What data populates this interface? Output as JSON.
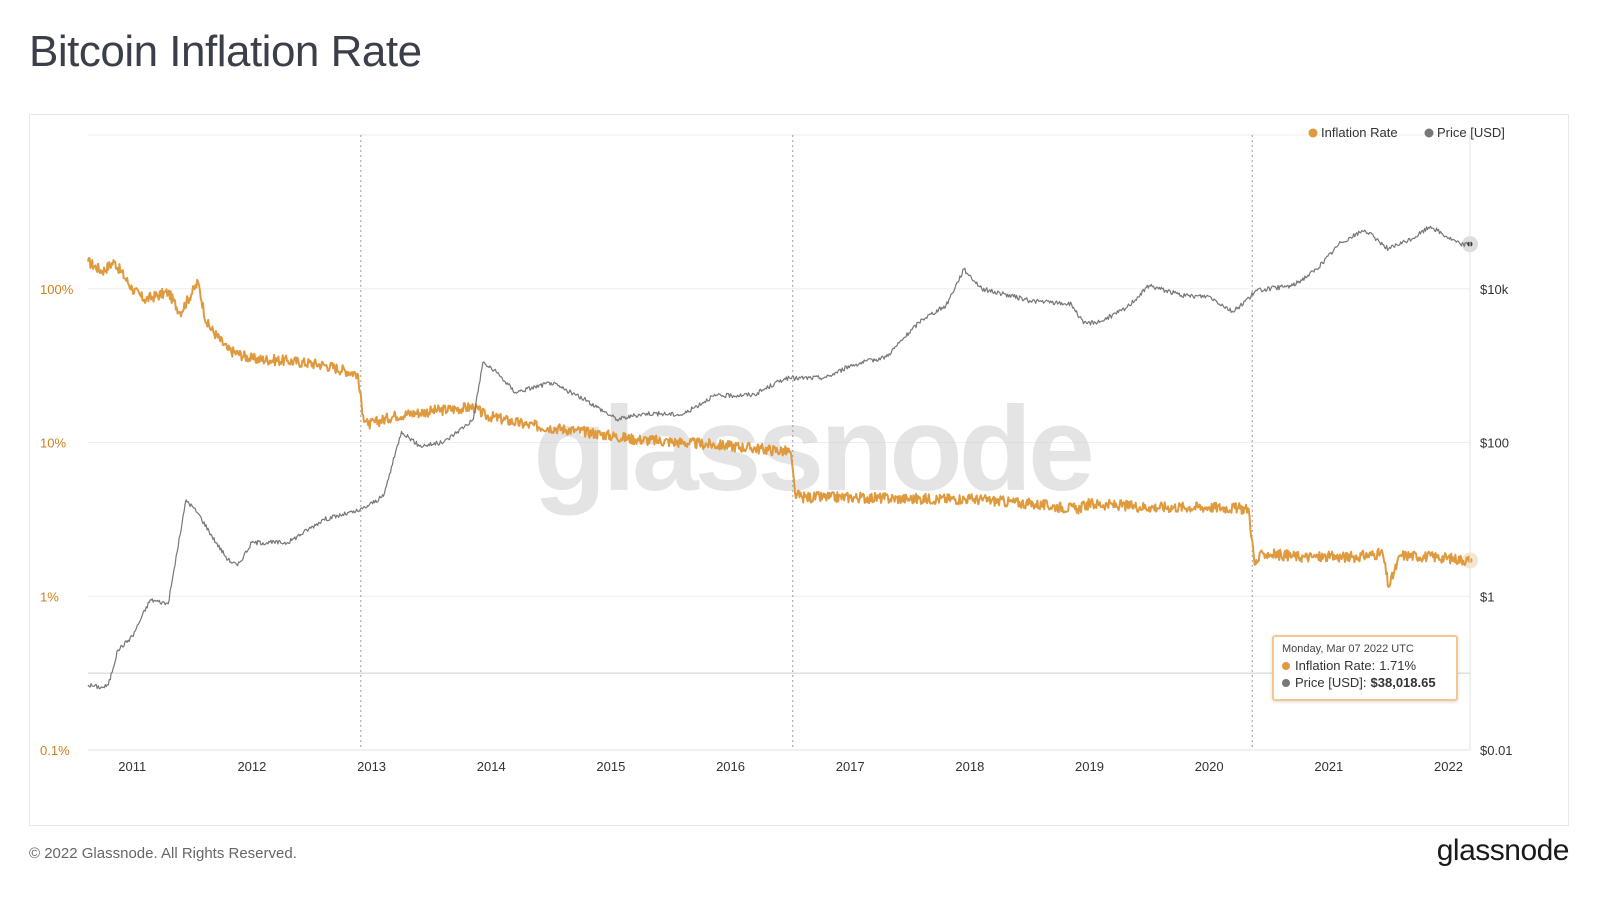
{
  "title": "Bitcoin Inflation Rate",
  "footer": {
    "copyright": "© 2022 Glassnode. All Rights Reserved.",
    "logo": "glassnode"
  },
  "watermark": "glassnode",
  "tooltip": {
    "date": "Monday, Mar 07 2022 UTC",
    "inflation_label": "Inflation Rate:",
    "inflation_value": "1.71%",
    "price_label": "Price [USD]:",
    "price_value": "$38,018.65"
  },
  "colors": {
    "inflation": "#e09a3e",
    "price": "#777777",
    "grid": "#eeeeee",
    "halving_line": "#999999"
  },
  "chart_data": {
    "type": "line",
    "title": "Bitcoin Inflation Rate",
    "x_ticks": [
      "2011",
      "2012",
      "2013",
      "2014",
      "2015",
      "2016",
      "2017",
      "2018",
      "2019",
      "2020",
      "2021",
      "2022"
    ],
    "x_range": [
      2010.63,
      2022.18
    ],
    "left_axis": {
      "scale": "log",
      "ticks": [
        "100%",
        "10%",
        "1%",
        "0.1%"
      ],
      "range": [
        0.1,
        1000
      ]
    },
    "right_axis": {
      "scale": "log",
      "ticks": [
        "$10k",
        "$100",
        "$1",
        "$0.01"
      ],
      "range": [
        0.01,
        1000000
      ]
    },
    "halving_markers": [
      2012.91,
      2016.52,
      2020.36
    ],
    "legend": [
      {
        "name": "Inflation Rate",
        "color": "#e09a3e"
      },
      {
        "name": "Price [USD]",
        "color": "#777777"
      }
    ],
    "legend_position": "top-right",
    "grid": true,
    "series": [
      {
        "name": "Inflation Rate",
        "axis": "left",
        "unit": "%",
        "points": [
          [
            2010.63,
            150
          ],
          [
            2010.75,
            130
          ],
          [
            2010.85,
            150
          ],
          [
            2011.0,
            100
          ],
          [
            2011.1,
            85
          ],
          [
            2011.3,
            95
          ],
          [
            2011.4,
            70
          ],
          [
            2011.55,
            110
          ],
          [
            2011.62,
            60
          ],
          [
            2011.8,
            40
          ],
          [
            2012.0,
            35
          ],
          [
            2012.3,
            34
          ],
          [
            2012.6,
            32
          ],
          [
            2012.88,
            28
          ],
          [
            2012.93,
            15
          ],
          [
            2012.97,
            13
          ],
          [
            2013.2,
            15
          ],
          [
            2013.5,
            16
          ],
          [
            2013.85,
            17
          ],
          [
            2013.95,
            15
          ],
          [
            2014.3,
            13
          ],
          [
            2014.7,
            12
          ],
          [
            2015.2,
            10.5
          ],
          [
            2015.6,
            10
          ],
          [
            2016.0,
            9.5
          ],
          [
            2016.5,
            8.7
          ],
          [
            2016.54,
            4.6
          ],
          [
            2016.6,
            4.4
          ],
          [
            2017.0,
            4.4
          ],
          [
            2017.5,
            4.3
          ],
          [
            2018.0,
            4.3
          ],
          [
            2018.5,
            4.0
          ],
          [
            2018.9,
            3.7
          ],
          [
            2019.0,
            4.0
          ],
          [
            2019.5,
            3.8
          ],
          [
            2020.0,
            3.8
          ],
          [
            2020.33,
            3.7
          ],
          [
            2020.38,
            1.6
          ],
          [
            2020.45,
            1.9
          ],
          [
            2020.8,
            1.8
          ],
          [
            2021.2,
            1.8
          ],
          [
            2021.45,
            1.9
          ],
          [
            2021.5,
            1.15
          ],
          [
            2021.6,
            1.85
          ],
          [
            2021.9,
            1.8
          ],
          [
            2022.18,
            1.71
          ]
        ]
      },
      {
        "name": "Price [USD]",
        "axis": "right",
        "unit": "USD",
        "points": [
          [
            2010.63,
            0.07
          ],
          [
            2010.75,
            0.065
          ],
          [
            2010.8,
            0.07
          ],
          [
            2010.88,
            0.2
          ],
          [
            2011.0,
            0.3
          ],
          [
            2011.15,
            0.9
          ],
          [
            2011.3,
            0.8
          ],
          [
            2011.45,
            18
          ],
          [
            2011.55,
            12
          ],
          [
            2011.7,
            5
          ],
          [
            2011.8,
            3
          ],
          [
            2011.88,
            2.5
          ],
          [
            2012.0,
            5
          ],
          [
            2012.3,
            5
          ],
          [
            2012.6,
            10
          ],
          [
            2012.9,
            13
          ],
          [
            2013.1,
            20
          ],
          [
            2013.25,
            140
          ],
          [
            2013.4,
            90
          ],
          [
            2013.6,
            100
          ],
          [
            2013.85,
            200
          ],
          [
            2013.93,
            1100
          ],
          [
            2014.05,
            800
          ],
          [
            2014.2,
            450
          ],
          [
            2014.5,
            600
          ],
          [
            2014.8,
            350
          ],
          [
            2015.05,
            200
          ],
          [
            2015.3,
            240
          ],
          [
            2015.6,
            230
          ],
          [
            2015.85,
            400
          ],
          [
            2016.2,
            420
          ],
          [
            2016.45,
            680
          ],
          [
            2016.8,
            700
          ],
          [
            2017.0,
            1000
          ],
          [
            2017.3,
            1300
          ],
          [
            2017.6,
            4000
          ],
          [
            2017.8,
            6000
          ],
          [
            2017.95,
            18000
          ],
          [
            2018.1,
            10000
          ],
          [
            2018.5,
            7000
          ],
          [
            2018.85,
            6300
          ],
          [
            2018.95,
            3500
          ],
          [
            2019.1,
            3800
          ],
          [
            2019.3,
            5500
          ],
          [
            2019.5,
            11000
          ],
          [
            2019.8,
            8000
          ],
          [
            2020.0,
            8000
          ],
          [
            2020.2,
            5000
          ],
          [
            2020.4,
            9500
          ],
          [
            2020.7,
            11000
          ],
          [
            2020.9,
            18000
          ],
          [
            2021.1,
            40000
          ],
          [
            2021.3,
            58000
          ],
          [
            2021.5,
            33000
          ],
          [
            2021.7,
            45000
          ],
          [
            2021.85,
            65000
          ],
          [
            2022.0,
            46000
          ],
          [
            2022.1,
            38000
          ],
          [
            2022.18,
            38018.65
          ]
        ]
      }
    ]
  }
}
